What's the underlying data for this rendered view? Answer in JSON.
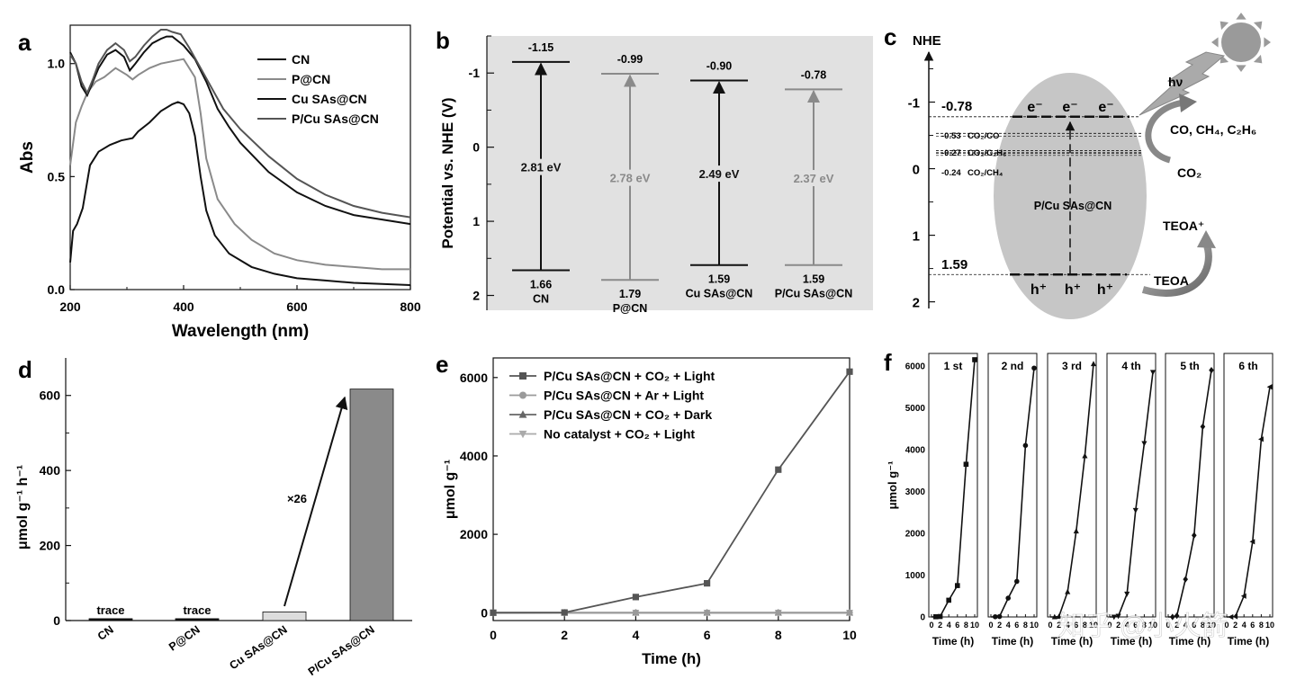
{
  "colors": {
    "black": "#111111",
    "gray": "#8a8a8a",
    "darkgray": "#555555",
    "panel_bg": "#e1e1e1"
  },
  "panel_labels": {
    "a": "a",
    "b": "b",
    "c": "c",
    "d": "d",
    "e": "e",
    "f": "f"
  },
  "chart_data": [
    {
      "id": "a",
      "type": "line",
      "xlabel": "Wavelength (nm)",
      "ylabel": "Abs",
      "xlim": [
        200,
        800
      ],
      "ylim": [
        0,
        1.17
      ],
      "xticks": [
        200,
        400,
        600,
        800
      ],
      "yticks": [
        0.0,
        0.5,
        1.0
      ],
      "ytick_labels": [
        "0.0",
        "0.5",
        "1.0"
      ],
      "series": [
        {
          "name": "CN",
          "color": "#111111",
          "points": [
            [
              200,
              0.12
            ],
            [
              205,
              0.26
            ],
            [
              212,
              0.29
            ],
            [
              222,
              0.36
            ],
            [
              235,
              0.55
            ],
            [
              250,
              0.61
            ],
            [
              270,
              0.64
            ],
            [
              290,
              0.66
            ],
            [
              310,
              0.67
            ],
            [
              320,
              0.7
            ],
            [
              340,
              0.74
            ],
            [
              360,
              0.79
            ],
            [
              380,
              0.82
            ],
            [
              390,
              0.83
            ],
            [
              400,
              0.82
            ],
            [
              410,
              0.78
            ],
            [
              420,
              0.68
            ],
            [
              430,
              0.5
            ],
            [
              440,
              0.35
            ],
            [
              455,
              0.24
            ],
            [
              480,
              0.16
            ],
            [
              520,
              0.1
            ],
            [
              560,
              0.07
            ],
            [
              600,
              0.05
            ],
            [
              650,
              0.04
            ],
            [
              700,
              0.03
            ],
            [
              750,
              0.025
            ],
            [
              800,
              0.02
            ]
          ]
        },
        {
          "name": "P@CN",
          "color": "#8a8a8a",
          "points": [
            [
              200,
              0.55
            ],
            [
              210,
              0.74
            ],
            [
              220,
              0.81
            ],
            [
              230,
              0.87
            ],
            [
              245,
              0.92
            ],
            [
              260,
              0.94
            ],
            [
              280,
              0.98
            ],
            [
              300,
              0.95
            ],
            [
              310,
              0.93
            ],
            [
              320,
              0.95
            ],
            [
              340,
              0.98
            ],
            [
              360,
              1.0
            ],
            [
              380,
              1.01
            ],
            [
              400,
              1.02
            ],
            [
              420,
              0.94
            ],
            [
              430,
              0.78
            ],
            [
              440,
              0.58
            ],
            [
              460,
              0.4
            ],
            [
              490,
              0.29
            ],
            [
              520,
              0.22
            ],
            [
              560,
              0.16
            ],
            [
              600,
              0.13
            ],
            [
              650,
              0.11
            ],
            [
              700,
              0.1
            ],
            [
              750,
              0.09
            ],
            [
              800,
              0.09
            ]
          ]
        },
        {
          "name": "Cu SAs@CN",
          "color": "#111111",
          "points": [
            [
              200,
              1.05
            ],
            [
              210,
              1.0
            ],
            [
              220,
              0.9
            ],
            [
              230,
              0.86
            ],
            [
              240,
              0.92
            ],
            [
              250,
              0.98
            ],
            [
              265,
              1.04
            ],
            [
              280,
              1.06
            ],
            [
              295,
              1.03
            ],
            [
              305,
              0.97
            ],
            [
              315,
              1.0
            ],
            [
              330,
              1.05
            ],
            [
              345,
              1.09
            ],
            [
              360,
              1.11
            ],
            [
              370,
              1.12
            ],
            [
              380,
              1.12
            ],
            [
              390,
              1.1
            ],
            [
              400,
              1.08
            ],
            [
              420,
              1.02
            ],
            [
              440,
              0.92
            ],
            [
              460,
              0.8
            ],
            [
              480,
              0.72
            ],
            [
              500,
              0.65
            ],
            [
              550,
              0.52
            ],
            [
              600,
              0.43
            ],
            [
              650,
              0.37
            ],
            [
              700,
              0.33
            ],
            [
              750,
              0.31
            ],
            [
              800,
              0.29
            ]
          ]
        },
        {
          "name": "P/Cu SAs@CN",
          "color": "#555555",
          "points": [
            [
              200,
              1.04
            ],
            [
              210,
              1.0
            ],
            [
              220,
              0.92
            ],
            [
              230,
              0.87
            ],
            [
              240,
              0.93
            ],
            [
              250,
              1.0
            ],
            [
              265,
              1.06
            ],
            [
              280,
              1.09
            ],
            [
              295,
              1.06
            ],
            [
              305,
              1.01
            ],
            [
              315,
              1.03
            ],
            [
              330,
              1.08
            ],
            [
              345,
              1.12
            ],
            [
              360,
              1.15
            ],
            [
              370,
              1.15
            ],
            [
              380,
              1.14
            ],
            [
              395,
              1.13
            ],
            [
              410,
              1.07
            ],
            [
              430,
              0.98
            ],
            [
              450,
              0.89
            ],
            [
              470,
              0.8
            ],
            [
              500,
              0.71
            ],
            [
              550,
              0.59
            ],
            [
              600,
              0.49
            ],
            [
              650,
              0.42
            ],
            [
              700,
              0.37
            ],
            [
              750,
              0.34
            ],
            [
              800,
              0.32
            ]
          ]
        }
      ]
    },
    {
      "id": "b",
      "type": "band-diagram",
      "ylabel": "Potential vs. NHE (V)",
      "ylim": [
        -1.5,
        2.2
      ],
      "yticks": [
        -1,
        0,
        1,
        2
      ],
      "ytick_labels": [
        "-1",
        "0",
        "1",
        "2"
      ],
      "samples": [
        {
          "name": "CN",
          "cb": -1.15,
          "vb": 1.66,
          "cb_label": "-1.15",
          "vb_label": "1.66",
          "gap_label": "2.81 eV",
          "color": "#111111"
        },
        {
          "name": "P@CN",
          "cb": -0.99,
          "vb": 1.79,
          "cb_label": "-0.99",
          "vb_label": "1.79",
          "gap_label": "2.78 eV",
          "color": "#8a8a8a"
        },
        {
          "name": "Cu SAs@CN",
          "cb": -0.9,
          "vb": 1.59,
          "cb_label": "-0.90",
          "vb_label": "1.59",
          "gap_label": "2.49 eV",
          "color": "#111111"
        },
        {
          "name": "P/Cu SAs@CN",
          "cb": -0.78,
          "vb": 1.59,
          "cb_label": "-0.78",
          "vb_label": "1.59",
          "gap_label": "2.37 eV",
          "color": "#8a8a8a"
        }
      ]
    },
    {
      "id": "c",
      "type": "scheme",
      "axis_title": "NHE",
      "ylim": [
        -1.75,
        2.1
      ],
      "yticks": [
        -1,
        0,
        1,
        2
      ],
      "ytick_labels": [
        "-1",
        "0",
        "1",
        "2"
      ],
      "cb": -0.78,
      "vb": 1.59,
      "cb_label": "-0.78",
      "vb_label": "1.59",
      "catalyst": "P/Cu SAs@CN",
      "electron": "e⁻",
      "hole": "h⁺",
      "redox": [
        {
          "potential": -0.53,
          "value": "-0.53",
          "couple": "CO₂/CO"
        },
        {
          "potential": -0.27,
          "value": "-0.27",
          "couple": "CO₂/C₂H₆"
        },
        {
          "potential": -0.24,
          "value": "-0.24",
          "couple": "CO₂/CH₄"
        }
      ],
      "light_label": "hν",
      "products": "CO, CH₄, C₂H₆",
      "reactant": "CO₂",
      "donor": "TEOA",
      "donor_oxidized": "TEOA⁺"
    },
    {
      "id": "d",
      "type": "bar",
      "ylabel": "μmol g⁻¹ h⁻¹",
      "ylim": [
        0,
        700
      ],
      "yticks": [
        0,
        200,
        400,
        600
      ],
      "categories": [
        "CN",
        "P@CN",
        "Cu SAs@CN",
        "P/Cu SAs@CN"
      ],
      "values": [
        5,
        5,
        23,
        617
      ],
      "colors": [
        "#111111",
        "#111111",
        "#dddddd",
        "#8a8a8a"
      ],
      "value_labels": [
        "trace",
        "trace",
        "",
        ""
      ],
      "annotation": "×26"
    },
    {
      "id": "e",
      "type": "line",
      "xlabel": "Time (h)",
      "ylabel": "μmol g⁻¹",
      "xlim": [
        0,
        10
      ],
      "ylim": [
        -200,
        6500
      ],
      "xticks": [
        0,
        2,
        4,
        6,
        8,
        10
      ],
      "yticks": [
        0,
        2000,
        4000,
        6000
      ],
      "series": [
        {
          "name": "P/Cu SAs@CN + CO₂ + Light",
          "marker": "square",
          "color": "#555555",
          "x": [
            0,
            2,
            4,
            6,
            8,
            10
          ],
          "y": [
            0,
            5,
            400,
            750,
            3650,
            6150
          ]
        },
        {
          "name": "P/Cu SAs@CN + Ar + Light",
          "marker": "circle",
          "color": "#9a9a9a",
          "x": [
            0,
            2,
            4,
            6,
            8,
            10
          ],
          "y": [
            0,
            0,
            0,
            0,
            0,
            0
          ]
        },
        {
          "name": "P/Cu SAs@CN + CO₂ + Dark",
          "marker": "triangle-up",
          "color": "#666666",
          "x": [
            0,
            2,
            4,
            6,
            8,
            10
          ],
          "y": [
            0,
            0,
            0,
            0,
            0,
            0
          ]
        },
        {
          "name": "No catalyst + CO₂ + Light",
          "marker": "triangle-down",
          "color": "#aaaaaa",
          "x": [
            0,
            2,
            4,
            6,
            8,
            10
          ],
          "y": [
            0,
            0,
            0,
            0,
            0,
            0
          ]
        }
      ]
    },
    {
      "id": "f",
      "type": "line",
      "ylabel": "μmol g⁻¹",
      "xlabel": "Time (h)",
      "xlim": [
        0,
        10
      ],
      "ylim": [
        0,
        6300
      ],
      "yticks": [
        0,
        1000,
        2000,
        3000,
        4000,
        5000,
        6000
      ],
      "xtick_labels": [
        "0",
        "2",
        "4",
        "6",
        "8",
        "10"
      ],
      "watermark": "知乎 @小火箭",
      "cycles": [
        {
          "label": "1 st",
          "marker": "square",
          "x": [
            0,
            1,
            2,
            4,
            6,
            8,
            10
          ],
          "y": [
            0,
            5,
            10,
            400,
            750,
            3650,
            6150
          ]
        },
        {
          "label": "2 nd",
          "marker": "circle",
          "x": [
            0,
            1,
            2,
            4,
            6,
            8,
            10
          ],
          "y": [
            0,
            5,
            10,
            450,
            850,
            4100,
            5950
          ]
        },
        {
          "label": "3 rd",
          "marker": "triangle-up",
          "x": [
            0,
            1,
            2,
            4,
            6,
            8,
            10
          ],
          "y": [
            0,
            0,
            10,
            600,
            2050,
            3850,
            6050
          ]
        },
        {
          "label": "4 th",
          "marker": "triangle-down",
          "x": [
            0,
            1,
            2,
            4,
            6,
            8,
            10
          ],
          "y": [
            0,
            0,
            20,
            550,
            2550,
            4150,
            5850
          ]
        },
        {
          "label": "5 th",
          "marker": "diamond",
          "x": [
            0,
            1,
            2,
            4,
            6,
            8,
            10
          ],
          "y": [
            0,
            0,
            30,
            900,
            1950,
            4550,
            5900
          ]
        },
        {
          "label": "6 th",
          "marker": "triangle-left",
          "x": [
            0,
            1,
            2,
            4,
            6,
            8,
            10
          ],
          "y": [
            0,
            0,
            10,
            500,
            1800,
            4250,
            5500
          ]
        }
      ]
    }
  ]
}
